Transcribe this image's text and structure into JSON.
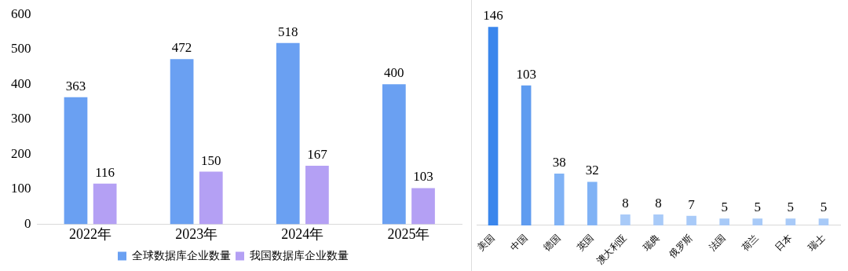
{
  "chart_data": [
    {
      "type": "bar",
      "categories": [
        "2022年",
        "2023年",
        "2024年",
        "2025年"
      ],
      "series": [
        {
          "name": "全球数据库企业数量",
          "color": "#6aa0f2",
          "values": [
            363,
            472,
            518,
            400
          ]
        },
        {
          "name": "我国数据库企业数量",
          "color": "#b4a0f4",
          "values": [
            116,
            150,
            167,
            103
          ]
        }
      ],
      "ylim": [
        0,
        600
      ],
      "yticks": [
        0,
        100,
        200,
        300,
        400,
        500,
        600
      ],
      "legend": "bottom",
      "data_labels": true
    },
    {
      "type": "bar",
      "categories": [
        "美国",
        "中国",
        "德国",
        "英国",
        "澳大利亚",
        "瑞典",
        "俄罗斯",
        "法国",
        "荷兰",
        "日本",
        "瑞士"
      ],
      "values": [
        146,
        103,
        38,
        32,
        8,
        8,
        7,
        5,
        5,
        5,
        5
      ],
      "colors": [
        "#3a86ec",
        "#5f9cf0",
        "#80b2f5",
        "#80b2f5",
        "#a8caf8",
        "#a8caf8",
        "#a8caf8",
        "#a8caf8",
        "#a8caf8",
        "#a8caf8",
        "#a8caf8"
      ],
      "data_labels": true,
      "tick_labels": "x"
    }
  ]
}
